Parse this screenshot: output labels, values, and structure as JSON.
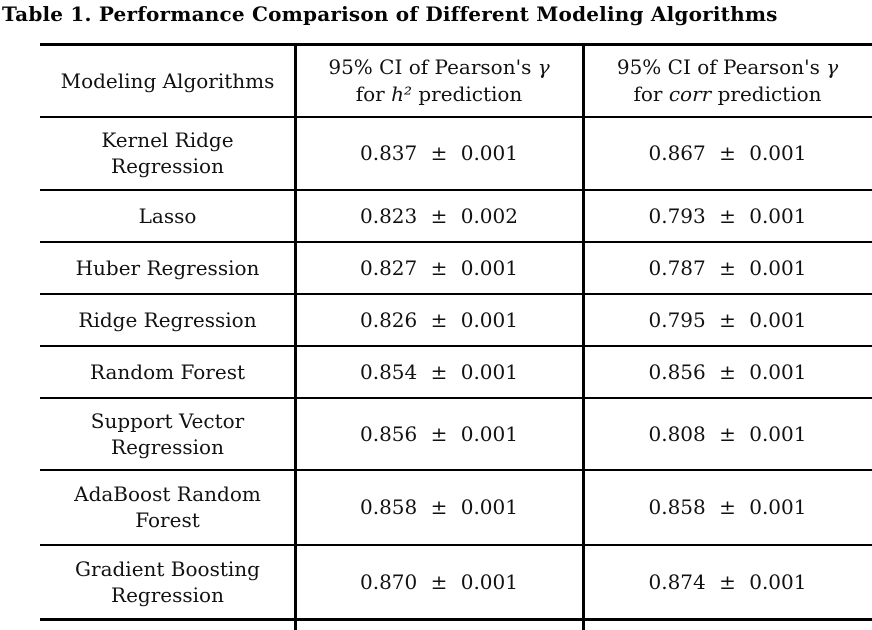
{
  "title": "Table 1. Performance Comparison of Different Modeling Algorithms",
  "colors": {
    "background": "#ffffff",
    "text": "#111111",
    "border": "#000000"
  },
  "table": {
    "header": {
      "col1": "Modeling Algorithms",
      "col2": {
        "line1_pre": "95% CI of Pearson's ",
        "line1_var": "γ",
        "line2_pre": "for ",
        "line2_var": "h²",
        "line2_post": " prediction"
      },
      "col3": {
        "line1_pre": "95% CI of Pearson's ",
        "line1_var": "γ",
        "line2_pre": "for ",
        "line2_var": "corr",
        "line2_post": " prediction"
      }
    },
    "rows": [
      {
        "algorithm": "Kernel Ridge Regression",
        "h2_ci": "0.837 ± 0.001",
        "corr_ci": "0.867 ± 0.001"
      },
      {
        "algorithm": "Lasso",
        "h2_ci": "0.823 ± 0.002",
        "corr_ci": "0.793 ± 0.001"
      },
      {
        "algorithm": "Huber Regression",
        "h2_ci": "0.827 ± 0.001",
        "corr_ci": "0.787 ± 0.001"
      },
      {
        "algorithm": "Ridge Regression",
        "h2_ci": "0.826 ± 0.001",
        "corr_ci": "0.795 ± 0.001"
      },
      {
        "algorithm": "Random Forest",
        "h2_ci": "0.854 ± 0.001",
        "corr_ci": "0.856 ± 0.001"
      },
      {
        "algorithm": "Support Vector Regression",
        "h2_ci": "0.856 ± 0.001",
        "corr_ci": "0.808 ± 0.001"
      },
      {
        "algorithm": "AdaBoost Random Forest",
        "h2_ci": "0.858 ± 0.001",
        "corr_ci": "0.858 ± 0.001"
      },
      {
        "algorithm": "Gradient Boosting Regression",
        "h2_ci": "0.870 ± 0.001",
        "corr_ci": "0.874 ± 0.001"
      }
    ]
  }
}
